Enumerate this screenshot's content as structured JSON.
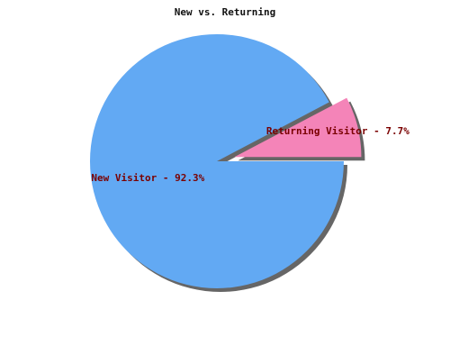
{
  "chart_data": {
    "type": "pie",
    "title": "New vs. Returning",
    "slices": [
      {
        "label": "New Visitor",
        "value": 92.3,
        "color": "#62a9f3",
        "exploded": false,
        "display_label": "New Visitor - 92.3%"
      },
      {
        "label": "Returning Visitor",
        "value": 7.7,
        "color": "#f484b8",
        "exploded": true,
        "display_label": "Returning Visitor - 7.7%"
      }
    ],
    "label_color": "#7a0000",
    "shadow_color": "#666666"
  }
}
